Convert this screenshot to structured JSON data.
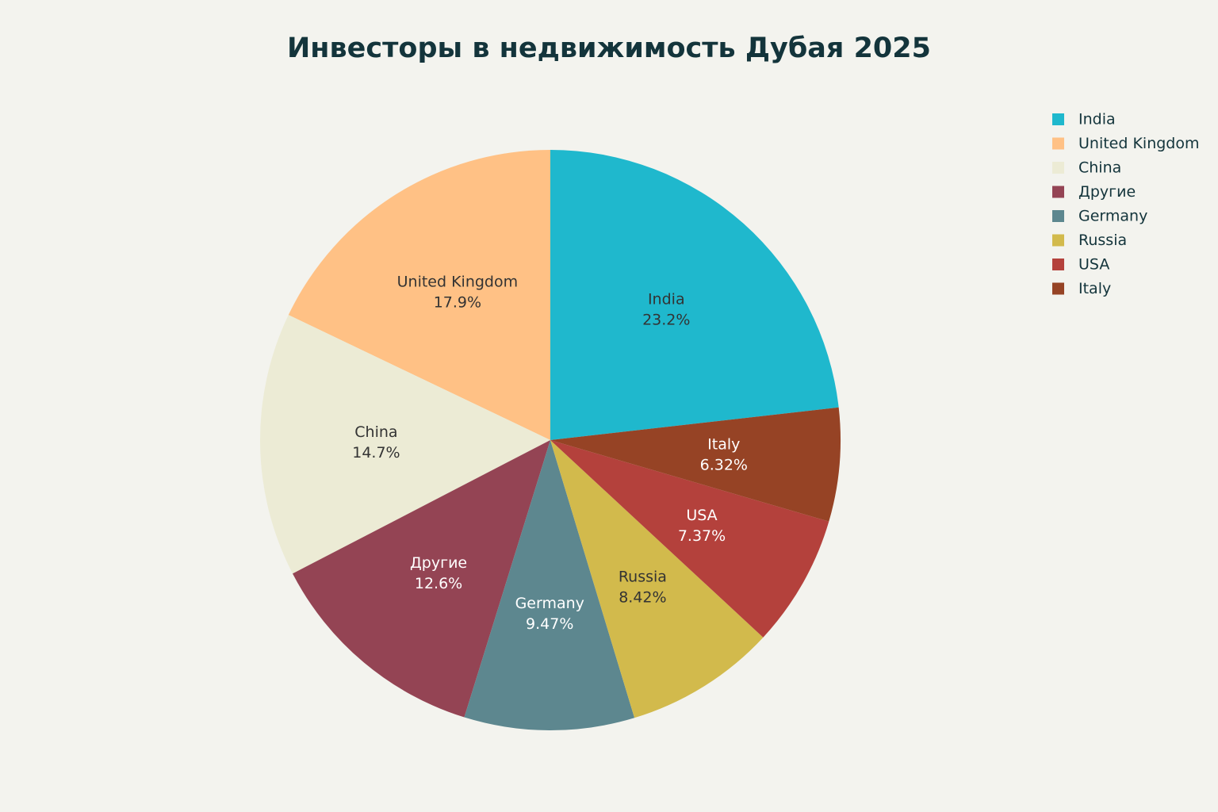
{
  "chart_data": {
    "type": "pie",
    "title": "Инвесторы в недвижимость Дубая 2025",
    "categories": [
      "India",
      "United Kingdom",
      "China",
      "Другие",
      "Germany",
      "Russia",
      "USA",
      "Italy"
    ],
    "values": [
      23.2,
      17.9,
      14.7,
      12.6,
      9.47,
      8.42,
      7.37,
      6.32
    ],
    "value_labels": [
      "23.2%",
      "17.9%",
      "14.7%",
      "12.6%",
      "9.47%",
      "8.42%",
      "7.37%",
      "6.32%"
    ],
    "colors": [
      "#1fb8cd",
      "#ffc185",
      "#ecebd5",
      "#944454",
      "#5d878f",
      "#d2ba4c",
      "#b4413c",
      "#964325"
    ],
    "direction": "counterclockwise",
    "legend": "top-right"
  }
}
